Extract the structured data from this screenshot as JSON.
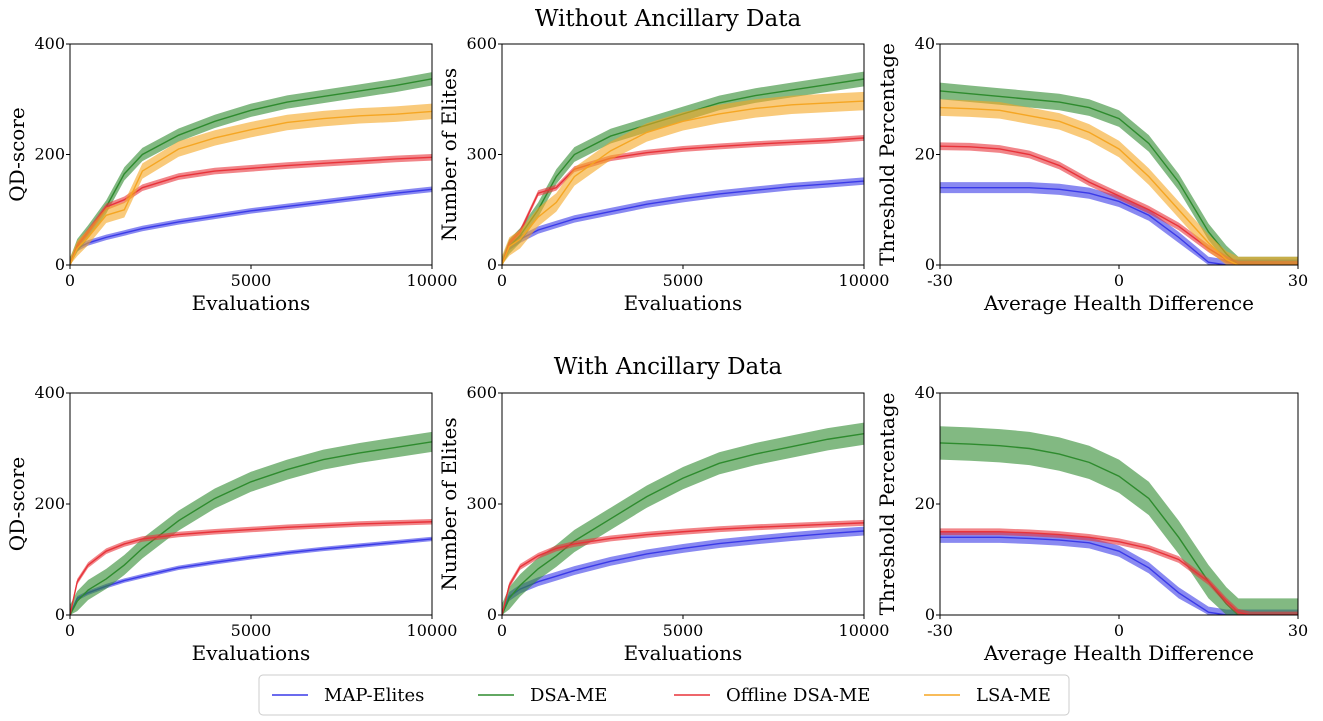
{
  "figure": {
    "row_titles": [
      "Without Ancillary Data",
      "With Ancillary Data"
    ],
    "legend": [
      {
        "label": "MAP-Elites",
        "color": "#3a3ae8"
      },
      {
        "label": "DSA-ME",
        "color": "#2e8b2e"
      },
      {
        "label": "Offline DSA-ME",
        "color": "#e8333a"
      },
      {
        "label": "LSA-ME",
        "color": "#f5a623"
      }
    ]
  },
  "chart_data": [
    {
      "type": "line",
      "title": "",
      "xlabel": "Evaluations",
      "ylabel": "QD-score",
      "xlim": [
        0,
        10000
      ],
      "ylim": [
        0,
        400
      ],
      "xticks": [
        0,
        5000,
        10000
      ],
      "yticks": [
        0,
        200,
        400
      ],
      "xtick_labels": [
        "0",
        "5000",
        "10000"
      ],
      "ytick_labels": [
        "0",
        "200",
        "400"
      ],
      "x": [
        0,
        200,
        500,
        1000,
        1500,
        2000,
        3000,
        4000,
        5000,
        6000,
        7000,
        8000,
        9000,
        10000
      ],
      "series": [
        {
          "name": "MAP-Elites",
          "color": "#3a3ae8",
          "band": 5,
          "values": [
            0,
            30,
            40,
            50,
            58,
            66,
            78,
            88,
            98,
            106,
            114,
            122,
            130,
            137
          ]
        },
        {
          "name": "DSA-ME",
          "color": "#2e8b2e",
          "band": 12,
          "values": [
            0,
            35,
            60,
            105,
            165,
            200,
            235,
            260,
            280,
            295,
            305,
            315,
            325,
            337
          ]
        },
        {
          "name": "Offline DSA-ME",
          "color": "#e8333a",
          "band": 6,
          "values": [
            0,
            35,
            60,
            105,
            118,
            140,
            160,
            170,
            175,
            180,
            184,
            188,
            192,
            195
          ]
        },
        {
          "name": "LSA-ME",
          "color": "#f5a623",
          "band": 14,
          "values": [
            0,
            30,
            50,
            90,
            100,
            170,
            210,
            230,
            245,
            258,
            265,
            270,
            273,
            278
          ]
        }
      ]
    },
    {
      "type": "line",
      "title": "",
      "xlabel": "Evaluations",
      "ylabel": "Number of Elites",
      "xlim": [
        0,
        10000
      ],
      "ylim": [
        0,
        600
      ],
      "xticks": [
        0,
        5000,
        10000
      ],
      "yticks": [
        0,
        300,
        600
      ],
      "xtick_labels": [
        "0",
        "5000",
        "10000"
      ],
      "ytick_labels": [
        "0",
        "300",
        "600"
      ],
      "x": [
        0,
        200,
        500,
        1000,
        1500,
        2000,
        3000,
        4000,
        5000,
        6000,
        7000,
        8000,
        9000,
        10000
      ],
      "series": [
        {
          "name": "MAP-Elites",
          "color": "#3a3ae8",
          "band": 10,
          "values": [
            0,
            50,
            70,
            95,
            110,
            125,
            145,
            165,
            180,
            193,
            203,
            213,
            220,
            228
          ]
        },
        {
          "name": "DSA-ME",
          "color": "#2e8b2e",
          "band": 20,
          "values": [
            0,
            50,
            80,
            150,
            240,
            300,
            350,
            380,
            410,
            440,
            460,
            475,
            490,
            505
          ]
        },
        {
          "name": "Offline DSA-ME",
          "color": "#e8333a",
          "band": 8,
          "values": [
            0,
            60,
            90,
            195,
            210,
            260,
            290,
            305,
            315,
            322,
            328,
            333,
            338,
            345
          ]
        },
        {
          "name": "LSA-ME",
          "color": "#f5a623",
          "band": 25,
          "values": [
            0,
            50,
            70,
            130,
            170,
            240,
            310,
            360,
            390,
            410,
            425,
            435,
            440,
            445
          ]
        }
      ]
    },
    {
      "type": "line",
      "title": "",
      "xlabel": "Average Health Difference",
      "ylabel": "Threshold Percentage",
      "xlim": [
        -30,
        30
      ],
      "ylim": [
        0,
        40
      ],
      "xticks": [
        -30,
        0,
        30
      ],
      "yticks": [
        0,
        20,
        40
      ],
      "xtick_labels": [
        "-30",
        "0",
        "30"
      ],
      "ytick_labels": [
        "0",
        "20",
        "40"
      ],
      "x": [
        -30,
        -25,
        -20,
        -15,
        -10,
        -5,
        0,
        5,
        10,
        15,
        18,
        20,
        22,
        25,
        30
      ],
      "series": [
        {
          "name": "MAP-Elites",
          "color": "#3a3ae8",
          "band": 1,
          "values": [
            14,
            14,
            14,
            14,
            13.7,
            13,
            11.5,
            9,
            5,
            0.5,
            0,
            0,
            0,
            0,
            0
          ]
        },
        {
          "name": "DSA-ME",
          "color": "#2e8b2e",
          "band": 1.5,
          "values": [
            31.5,
            31,
            30.5,
            30,
            29.5,
            28.5,
            26.5,
            22,
            15,
            6,
            2,
            0,
            0,
            0,
            0
          ]
        },
        {
          "name": "Offline DSA-ME",
          "color": "#e8333a",
          "band": 0.7,
          "values": [
            21.5,
            21.4,
            21,
            20,
            18,
            15,
            12.5,
            10,
            7,
            3,
            1,
            0,
            0,
            0,
            0
          ]
        },
        {
          "name": "LSA-ME",
          "color": "#f5a623",
          "band": 1.5,
          "values": [
            28.5,
            28.3,
            28,
            27,
            26,
            24,
            21,
            16,
            10,
            4,
            1,
            0,
            0,
            0,
            0
          ]
        }
      ]
    },
    {
      "type": "line",
      "title": "",
      "xlabel": "Evaluations",
      "ylabel": "QD-score",
      "xlim": [
        0,
        10000
      ],
      "ylim": [
        0,
        400
      ],
      "xticks": [
        0,
        5000,
        10000
      ],
      "yticks": [
        0,
        200,
        400
      ],
      "xtick_labels": [
        "0",
        "5000",
        "10000"
      ],
      "ytick_labels": [
        "0",
        "200",
        "400"
      ],
      "x": [
        0,
        200,
        500,
        1000,
        1500,
        2000,
        3000,
        4000,
        5000,
        6000,
        7000,
        8000,
        9000,
        10000
      ],
      "series": [
        {
          "name": "MAP-Elites",
          "color": "#3a3ae8",
          "band": 4,
          "values": [
            0,
            30,
            40,
            52,
            62,
            70,
            85,
            95,
            104,
            112,
            119,
            125,
            131,
            137
          ]
        },
        {
          "name": "DSA-ME",
          "color": "#2e8b2e",
          "band": 18,
          "values": [
            0,
            25,
            45,
            65,
            90,
            120,
            170,
            210,
            240,
            262,
            280,
            292,
            302,
            312
          ]
        },
        {
          "name": "Offline DSA-ME",
          "color": "#e8333a",
          "band": 5,
          "values": [
            0,
            60,
            90,
            115,
            128,
            137,
            145,
            150,
            154,
            158,
            161,
            164,
            166,
            168
          ]
        }
      ]
    },
    {
      "type": "line",
      "title": "",
      "xlabel": "Evaluations",
      "ylabel": "Number of Elites",
      "xlim": [
        0,
        10000
      ],
      "ylim": [
        0,
        600
      ],
      "xticks": [
        0,
        5000,
        10000
      ],
      "yticks": [
        0,
        300,
        600
      ],
      "xtick_labels": [
        "0",
        "5000",
        "10000"
      ],
      "ytick_labels": [
        "0",
        "300",
        "600"
      ],
      "x": [
        0,
        200,
        500,
        1000,
        1500,
        2000,
        3000,
        4000,
        5000,
        6000,
        7000,
        8000,
        9000,
        10000
      ],
      "series": [
        {
          "name": "MAP-Elites",
          "color": "#3a3ae8",
          "band": 12,
          "values": [
            0,
            50,
            70,
            90,
            105,
            120,
            145,
            165,
            180,
            193,
            203,
            212,
            220,
            227
          ]
        },
        {
          "name": "DSA-ME",
          "color": "#2e8b2e",
          "band": 30,
          "values": [
            0,
            45,
            80,
            125,
            160,
            200,
            260,
            320,
            370,
            410,
            435,
            455,
            475,
            490
          ]
        },
        {
          "name": "Offline DSA-ME",
          "color": "#e8333a",
          "band": 8,
          "values": [
            0,
            80,
            130,
            160,
            180,
            192,
            207,
            217,
            225,
            232,
            237,
            241,
            245,
            249
          ]
        }
      ]
    },
    {
      "type": "line",
      "title": "",
      "xlabel": "Average Health Difference",
      "ylabel": "Threshold Percentage",
      "xlim": [
        -30,
        30
      ],
      "ylim": [
        0,
        40
      ],
      "xticks": [
        -30,
        0,
        30
      ],
      "yticks": [
        0,
        20,
        40
      ],
      "xtick_labels": [
        "-30",
        "0",
        "30"
      ],
      "ytick_labels": [
        "0",
        "20",
        "40"
      ],
      "x": [
        -30,
        -25,
        -20,
        -15,
        -10,
        -5,
        0,
        5,
        10,
        15,
        18,
        20,
        22,
        25,
        30
      ],
      "series": [
        {
          "name": "MAP-Elites",
          "color": "#3a3ae8",
          "band": 1,
          "values": [
            14,
            14,
            14,
            13.8,
            13.5,
            13,
            11.5,
            8.5,
            4,
            0.5,
            0,
            0,
            0,
            0,
            0
          ]
        },
        {
          "name": "DSA-ME",
          "color": "#2e8b2e",
          "band": 3,
          "values": [
            31,
            30.8,
            30.5,
            30,
            29,
            27.5,
            25,
            21,
            14,
            6,
            2,
            0,
            0,
            0,
            0
          ]
        },
        {
          "name": "Offline DSA-ME",
          "color": "#e8333a",
          "band": 0.6,
          "values": [
            15,
            15,
            15,
            14.8,
            14.5,
            14,
            13.2,
            12,
            10,
            6,
            2.5,
            0.5,
            0,
            0,
            0
          ]
        }
      ]
    }
  ]
}
